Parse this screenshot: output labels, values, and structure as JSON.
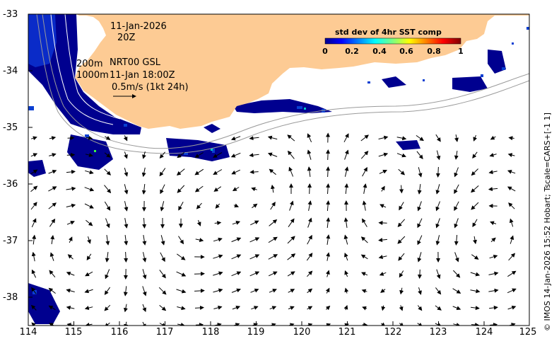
{
  "map": {
    "date": "11-Jan-2026",
    "hour": "20Z",
    "contour_200": "200m",
    "contour_1000": "1000m",
    "product": "NRT00 GSL",
    "time_label": "11-Jan 18:00Z",
    "scale_label": "0.5m/s (1kt 24h)",
    "credit": "© IMOS 14-Jan-2026 15:52 Hobart; Tscale=CARS+[-1 1]",
    "lon_range": [
      114,
      125
    ],
    "lat_range": [
      -38.5,
      -33
    ],
    "x_ticks": [
      "114",
      "115",
      "116",
      "117",
      "118",
      "119",
      "120",
      "121",
      "122",
      "123",
      "124",
      "125"
    ],
    "y_ticks": [
      "-33",
      "-34",
      "-35",
      "-36",
      "-37",
      "-38"
    ]
  },
  "colorbar": {
    "title": "std dev of 4hr SST comp",
    "ticks": [
      "0",
      "0.2",
      "0.4",
      "0.6",
      "0.8",
      "1"
    ],
    "range": [
      0,
      1
    ]
  },
  "colors": {
    "land": "#fdcb94",
    "sst_low": "#00008f",
    "sst_mid": "#0a3fd2",
    "contour": "#9a9a9a"
  }
}
